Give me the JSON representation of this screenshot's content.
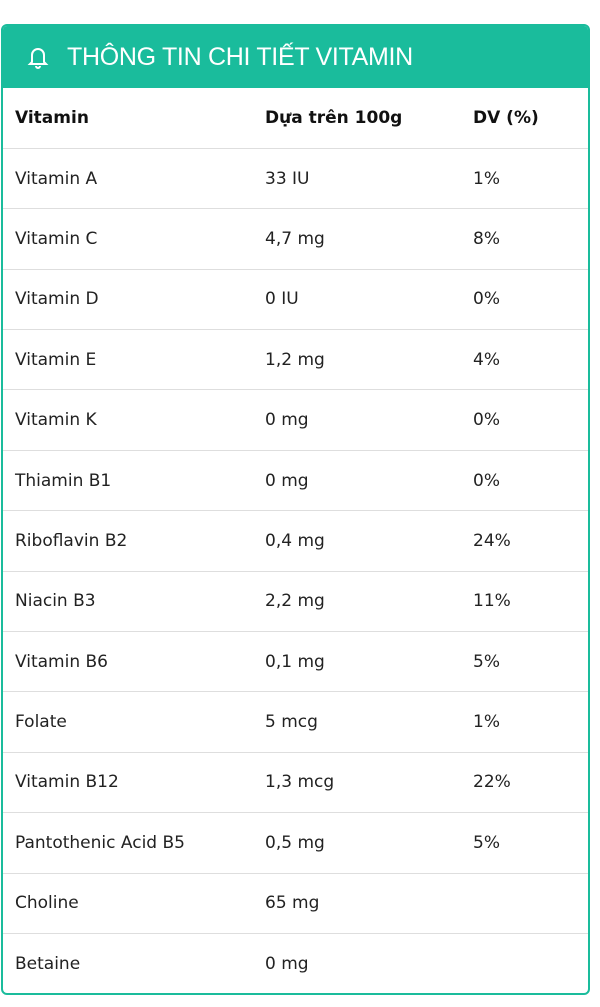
{
  "panel": {
    "title": "THÔNG TIN CHI TIẾT VITAMIN",
    "icon": "bell-icon",
    "accent": "#1abc9c"
  },
  "table": {
    "headers": [
      "Vitamin",
      "Dựa trên 100g",
      "DV (%)"
    ],
    "rows": [
      [
        "Vitamin A",
        "33 IU",
        "1%"
      ],
      [
        "Vitamin C",
        "4,7 mg",
        "8%"
      ],
      [
        "Vitamin D",
        "0 IU",
        "0%"
      ],
      [
        "Vitamin E",
        "1,2 mg",
        "4%"
      ],
      [
        "Vitamin K",
        "0 mg",
        "0%"
      ],
      [
        "Thiamin B1",
        "0 mg",
        "0%"
      ],
      [
        "Riboflavin B2",
        "0,4 mg",
        "24%"
      ],
      [
        "Niacin B3",
        "2,2 mg",
        "11%"
      ],
      [
        "Vitamin B6",
        "0,1 mg",
        "5%"
      ],
      [
        "Folate",
        "5 mcg",
        "1%"
      ],
      [
        "Vitamin B12",
        "1,3 mcg",
        "22%"
      ],
      [
        "Pantothenic Acid B5",
        "0,5 mg",
        "5%"
      ],
      [
        "Choline",
        "65 mg",
        ""
      ],
      [
        "Betaine",
        "0 mg",
        ""
      ]
    ]
  }
}
